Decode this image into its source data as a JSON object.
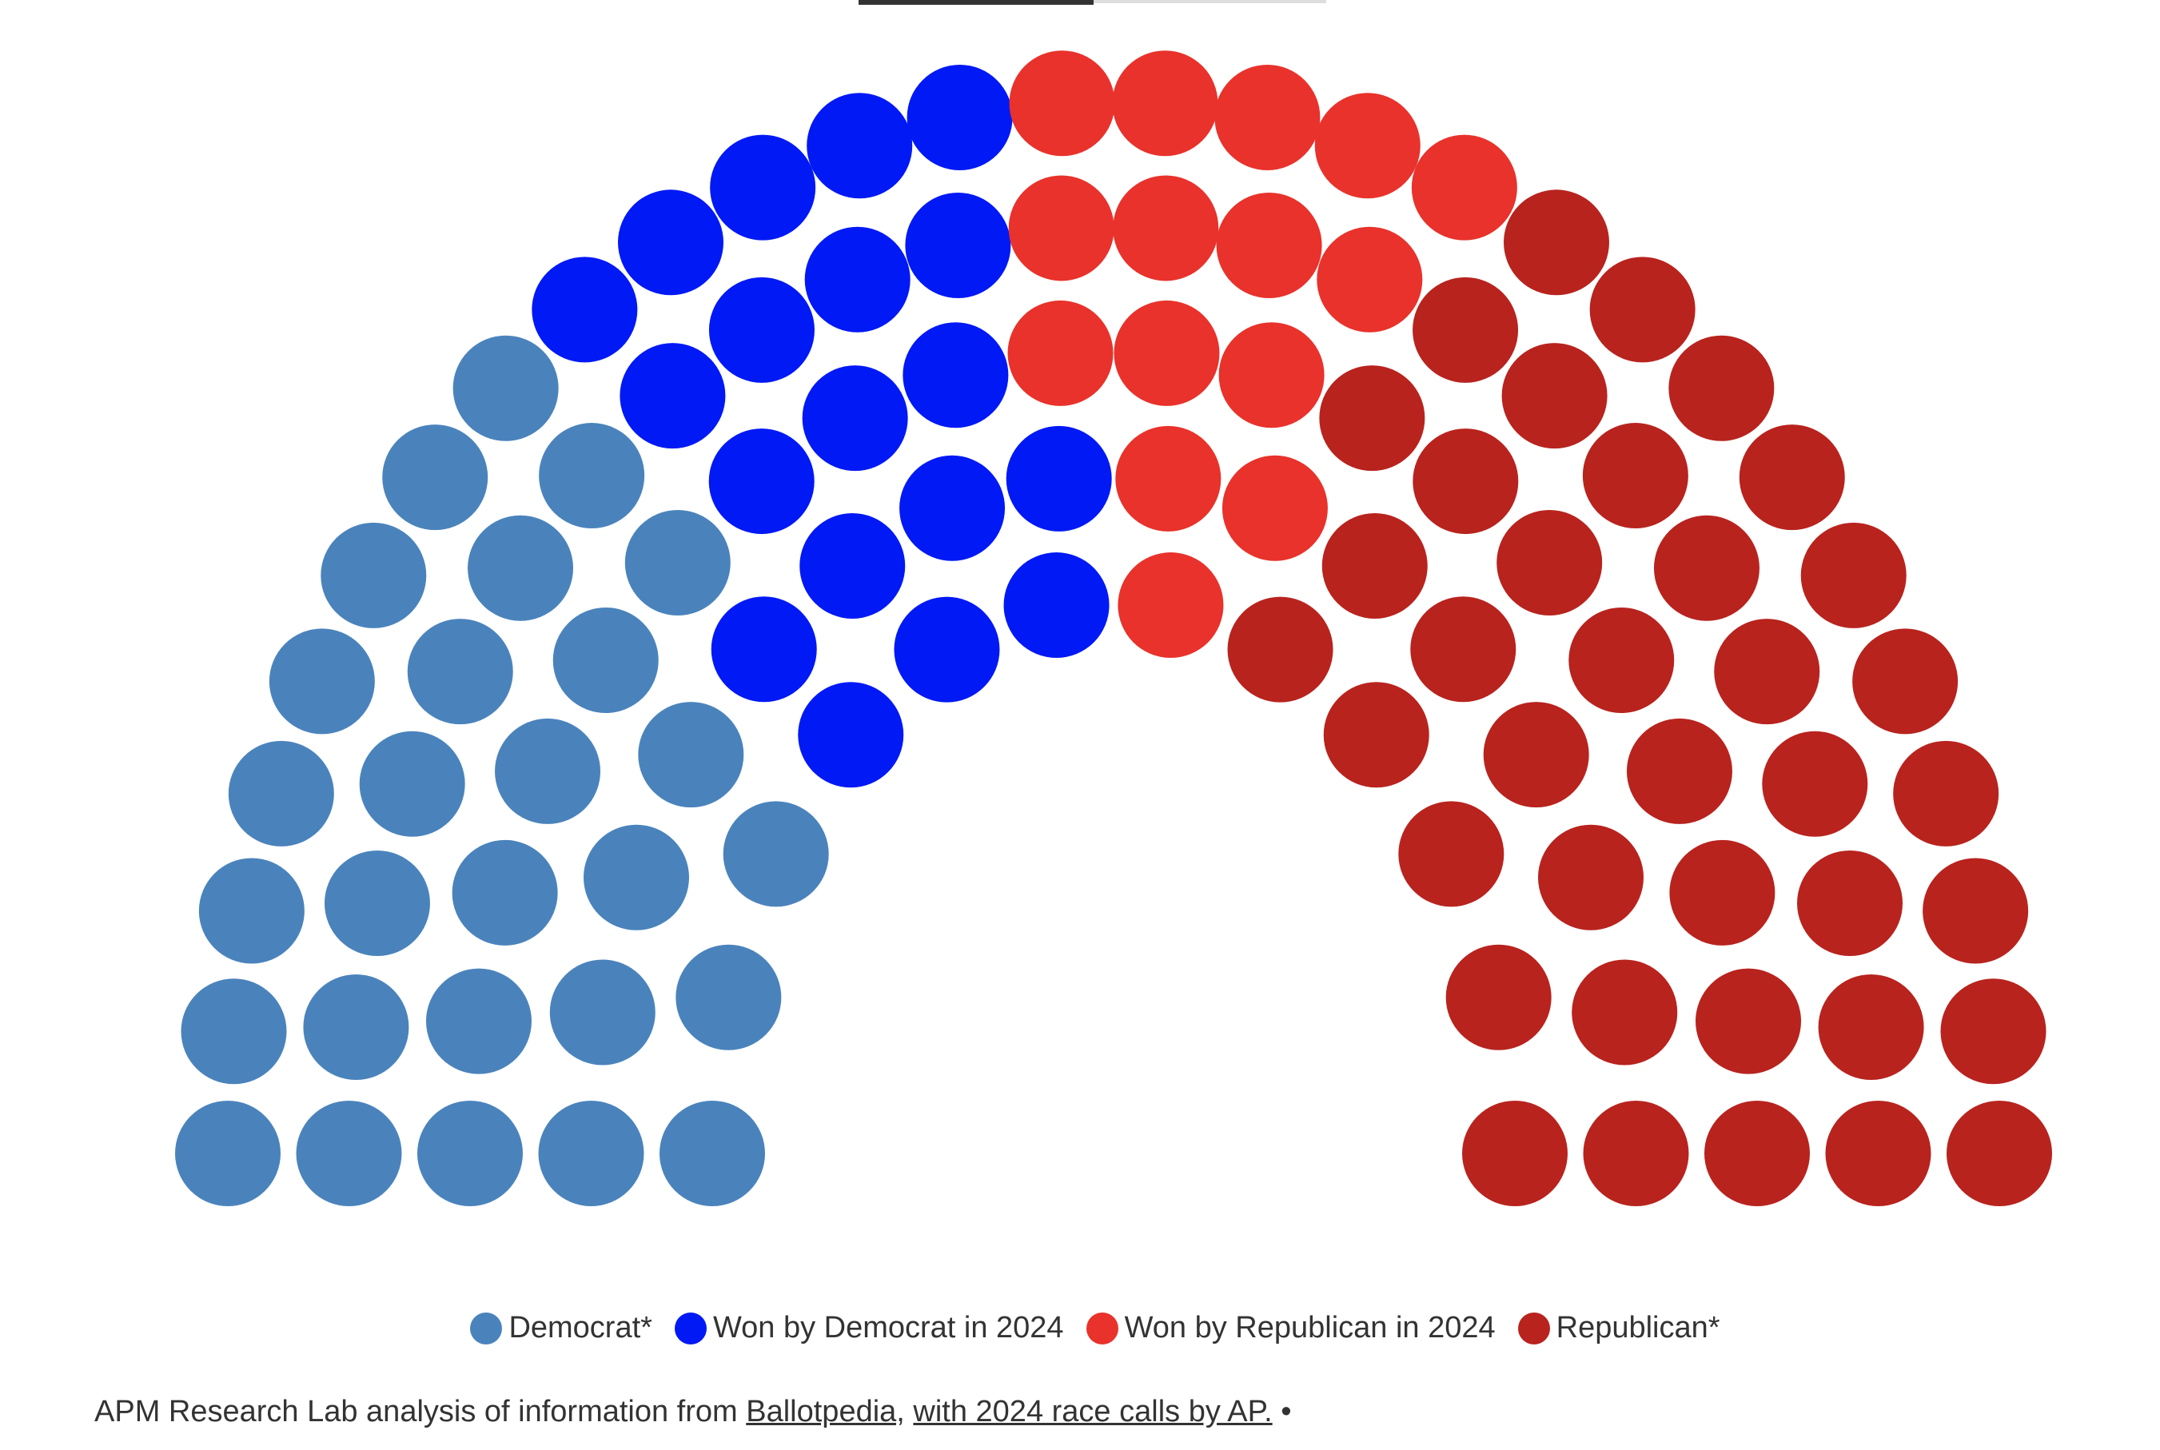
{
  "chart_data": {
    "type": "parliament",
    "series": [
      {
        "name": "Democrat*",
        "color": "#4a83bc",
        "value": 28
      },
      {
        "name": "Won by Democrat in 2024",
        "color": "#0019f5",
        "value": 19
      },
      {
        "name": "Won by Republican in 2024",
        "color": "#e8322b",
        "value": 15
      },
      {
        "name": "Republican*",
        "color": "#b8231e",
        "value": 38
      }
    ],
    "source": {
      "prefix": "APM Research Lab analysis of information from",
      "link1": "Ballotpedia,",
      "link2": "with 2024 race calls by AP.",
      "suffix": "•"
    }
  }
}
